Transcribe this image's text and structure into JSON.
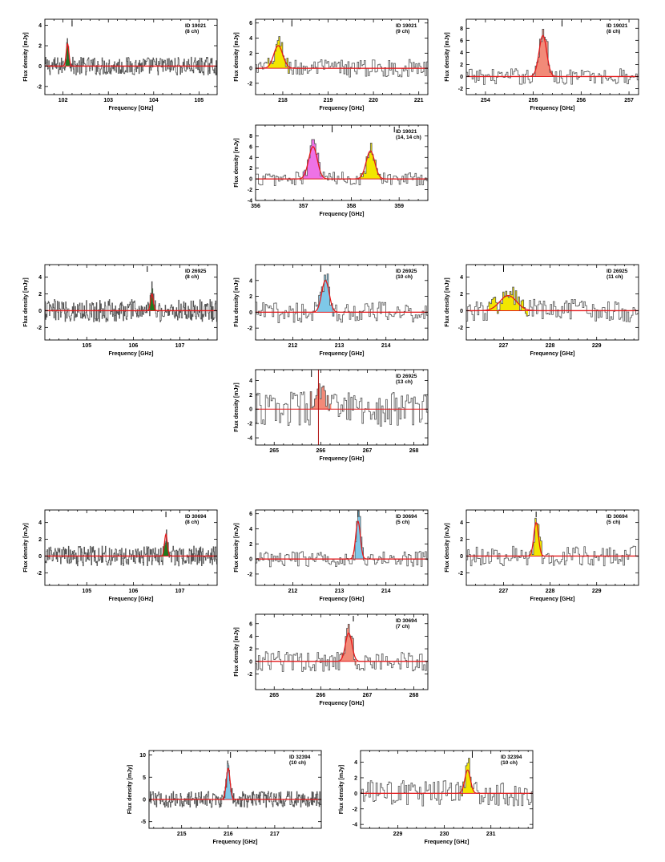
{
  "chart_data": [
    {
      "type": "line",
      "id": "p1",
      "id_label": "ID 19021",
      "ch_label": "(8 ch)",
      "xlabel": "Frequency [GHz]",
      "ylabel": "Flux density [mJy]",
      "xlim": [
        101.6,
        105.4
      ],
      "ylim": [
        -2.8,
        4.6
      ],
      "xticks": [
        102,
        103,
        104,
        105
      ],
      "yticks": [
        -2,
        0,
        2,
        4
      ],
      "line": {
        "center": 102.1,
        "amp": 2.2,
        "sigma": 0.03,
        "color": "#1e7a1e"
      },
      "markers": [
        102.2
      ],
      "noise": 0.6
    },
    {
      "type": "line",
      "id": "p2",
      "id_label": "ID 19021",
      "ch_label": "(9 ch)",
      "xlabel": "Frequency [GHz]",
      "ylabel": "Flux density [mJy]",
      "xlim": [
        217.4,
        221.2
      ],
      "ylim": [
        -3.5,
        6.5
      ],
      "xticks": [
        218,
        219,
        220,
        221
      ],
      "yticks": [
        -2,
        0,
        2,
        4,
        6
      ],
      "line": {
        "center": 217.9,
        "amp": 3.0,
        "sigma": 0.1,
        "color": "#f2e600"
      },
      "markers": [
        218.2
      ],
      "noise": 0.8
    },
    {
      "type": "line",
      "id": "p3",
      "id_label": "ID 19021",
      "ch_label": "(8 ch)",
      "xlabel": "Frequency [GHz]",
      "ylabel": "Flux density [mJy]",
      "xlim": [
        253.6,
        257.2
      ],
      "ylim": [
        -3.0,
        9.5
      ],
      "xticks": [
        254,
        255,
        256,
        257
      ],
      "yticks": [
        -2,
        0,
        2,
        4,
        6,
        8
      ],
      "line": {
        "center": 255.2,
        "amp": 6.8,
        "sigma": 0.08,
        "color": "#f28a78"
      },
      "markers": [
        255.6
      ],
      "noise": 0.9
    },
    {
      "type": "line",
      "id": "p4",
      "id_label": "ID 19021",
      "ch_label": "(14, 14 ch)",
      "xlabel": "Frequency [GHz]",
      "ylabel": "Flux density [mJy]",
      "xlim": [
        356.0,
        359.6
      ],
      "ylim": [
        -4.0,
        10.0
      ],
      "xticks": [
        356,
        357,
        358,
        359
      ],
      "yticks": [
        -4,
        -2,
        0,
        2,
        4,
        6,
        8
      ],
      "line": {
        "center": 357.2,
        "amp": 6.0,
        "sigma": 0.09,
        "color": "#ee72e6"
      },
      "line2": {
        "center": 358.4,
        "amp": 5.2,
        "sigma": 0.09,
        "color": "#f2e600"
      },
      "markers": [
        357.6,
        358.9
      ],
      "noise": 0.9
    },
    {
      "type": "line",
      "id": "p5",
      "id_label": "ID 26925",
      "ch_label": "(8 ch)",
      "xlabel": "Frequency [GHz]",
      "ylabel": "Flux density [mJy]",
      "xlim": [
        104.1,
        107.8
      ],
      "ylim": [
        -3.5,
        5.5
      ],
      "xticks": [
        105,
        106,
        107
      ],
      "yticks": [
        -2,
        0,
        2,
        4
      ],
      "line": {
        "center": 106.4,
        "amp": 2.0,
        "sigma": 0.03,
        "color": "#1e7a1e"
      },
      "markers": [
        106.3
      ],
      "noise": 0.9
    },
    {
      "type": "line",
      "id": "p6",
      "id_label": "ID 26925",
      "ch_label": "(10 ch)",
      "xlabel": "Frequency [GHz]",
      "ylabel": "Flux density [mJy]",
      "xlim": [
        211.2,
        214.9
      ],
      "ylim": [
        -3.5,
        6.0
      ],
      "xticks": [
        212,
        213,
        214
      ],
      "yticks": [
        -2,
        0,
        2,
        4
      ],
      "line": {
        "center": 212.7,
        "amp": 4.0,
        "sigma": 0.08,
        "color": "#7ec8e8"
      },
      "markers": [
        212.6
      ],
      "noise": 0.9
    },
    {
      "type": "line",
      "id": "p7",
      "id_label": "ID 26925",
      "ch_label": "(11 ch)",
      "xlabel": "Frequency [GHz]",
      "ylabel": "Flux density [mJy]",
      "xlim": [
        226.2,
        229.9
      ],
      "ylim": [
        -3.5,
        5.5
      ],
      "xticks": [
        227,
        228,
        229
      ],
      "yticks": [
        -2,
        0,
        2,
        4
      ],
      "line": {
        "center": 227.1,
        "amp": 1.8,
        "sigma": 0.18,
        "color": "#f2e600"
      },
      "markers": [
        227.0
      ],
      "noise": 0.9
    },
    {
      "type": "line",
      "id": "p8",
      "id_label": "ID 26925",
      "ch_label": "(13 ch)",
      "xlabel": "Frequency [GHz]",
      "ylabel": "Flux density [mJy]",
      "xlim": [
        264.6,
        268.3
      ],
      "ylim": [
        -5.0,
        5.5
      ],
      "xticks": [
        265,
        266,
        267,
        268
      ],
      "yticks": [
        -4,
        -2,
        0,
        2,
        4
      ],
      "line": {
        "center": 266.0,
        "amp": 1.8,
        "sigma": 0.1,
        "color": "#f28a78"
      },
      "markers": [
        265.8
      ],
      "vline": 265.95,
      "flatfit": true,
      "noise": 1.6
    },
    {
      "type": "line",
      "id": "p9",
      "id_label": "ID 30694",
      "ch_label": "(8 ch)",
      "xlabel": "Frequency [GHz]",
      "ylabel": "Flux density [mJy]",
      "xlim": [
        104.1,
        107.8
      ],
      "ylim": [
        -3.5,
        5.5
      ],
      "xticks": [
        105,
        106,
        107
      ],
      "yticks": [
        -2,
        0,
        2,
        4
      ],
      "line": {
        "center": 106.7,
        "amp": 2.6,
        "sigma": 0.03,
        "color": "#1e7a1e"
      },
      "markers": [
        106.7
      ],
      "noise": 0.8
    },
    {
      "type": "line",
      "id": "p10",
      "id_label": "ID 30694",
      "ch_label": "(5 ch)",
      "xlabel": "Frequency [GHz]",
      "ylabel": "Flux density [mJy]",
      "xlim": [
        211.2,
        214.9
      ],
      "ylim": [
        -3.5,
        6.5
      ],
      "xticks": [
        212,
        213,
        214
      ],
      "yticks": [
        -2,
        0,
        2,
        4,
        6
      ],
      "line": {
        "center": 213.4,
        "amp": 5.0,
        "sigma": 0.05,
        "color": "#7ec8e8"
      },
      "markers": [
        213.4
      ],
      "noise": 0.7
    },
    {
      "type": "line",
      "id": "p11",
      "id_label": "ID 30694",
      "ch_label": "(5 ch)",
      "xlabel": "Frequency [GHz]",
      "ylabel": "Flux density [mJy]",
      "xlim": [
        226.2,
        229.9
      ],
      "ylim": [
        -3.5,
        5.5
      ],
      "xticks": [
        227,
        228,
        229
      ],
      "yticks": [
        -2,
        0,
        2,
        4
      ],
      "line": {
        "center": 227.7,
        "amp": 4.0,
        "sigma": 0.05,
        "color": "#f2e600"
      },
      "markers": [
        227.7
      ],
      "noise": 0.8
    },
    {
      "type": "line",
      "id": "p12",
      "id_label": "ID 30694",
      "ch_label": "(7 ch)",
      "xlabel": "Frequency [GHz]",
      "ylabel": "Flux density [mJy]",
      "xlim": [
        264.6,
        268.3
      ],
      "ylim": [
        -4.5,
        7.5
      ],
      "xticks": [
        265,
        266,
        267,
        268
      ],
      "yticks": [
        -2,
        0,
        2,
        4,
        6
      ],
      "line": {
        "center": 266.6,
        "amp": 4.5,
        "sigma": 0.07,
        "color": "#f28a78"
      },
      "markers": [
        266.7
      ],
      "noise": 1.1
    },
    {
      "type": "line",
      "id": "p13",
      "id_label": "ID 32394",
      "ch_label": "(10 ch)",
      "xlabel": "Frequency [GHz]",
      "ylabel": "Flux density [mJy]",
      "xlim": [
        214.3,
        218.0
      ],
      "ylim": [
        -6.5,
        11.0
      ],
      "xticks": [
        215,
        216,
        217
      ],
      "yticks": [
        -5,
        0,
        5,
        10
      ],
      "line": {
        "center": 216.0,
        "amp": 7.0,
        "sigma": 0.04,
        "color": "#7ec8e8"
      },
      "markers": [
        216.05
      ],
      "noise": 1.2
    },
    {
      "type": "line",
      "id": "p14",
      "id_label": "ID 32394",
      "ch_label": "(10 ch)",
      "xlabel": "Frequency [GHz]",
      "ylabel": "Flux density [mJy]",
      "xlim": [
        228.2,
        231.9
      ],
      "ylim": [
        -4.5,
        5.5
      ],
      "xticks": [
        229,
        230,
        231
      ],
      "yticks": [
        -4,
        -2,
        0,
        2,
        4
      ],
      "line": {
        "center": 230.5,
        "amp": 3.0,
        "sigma": 0.06,
        "color": "#f2e600"
      },
      "markers": [
        230.6
      ],
      "noise": 1.1
    }
  ]
}
